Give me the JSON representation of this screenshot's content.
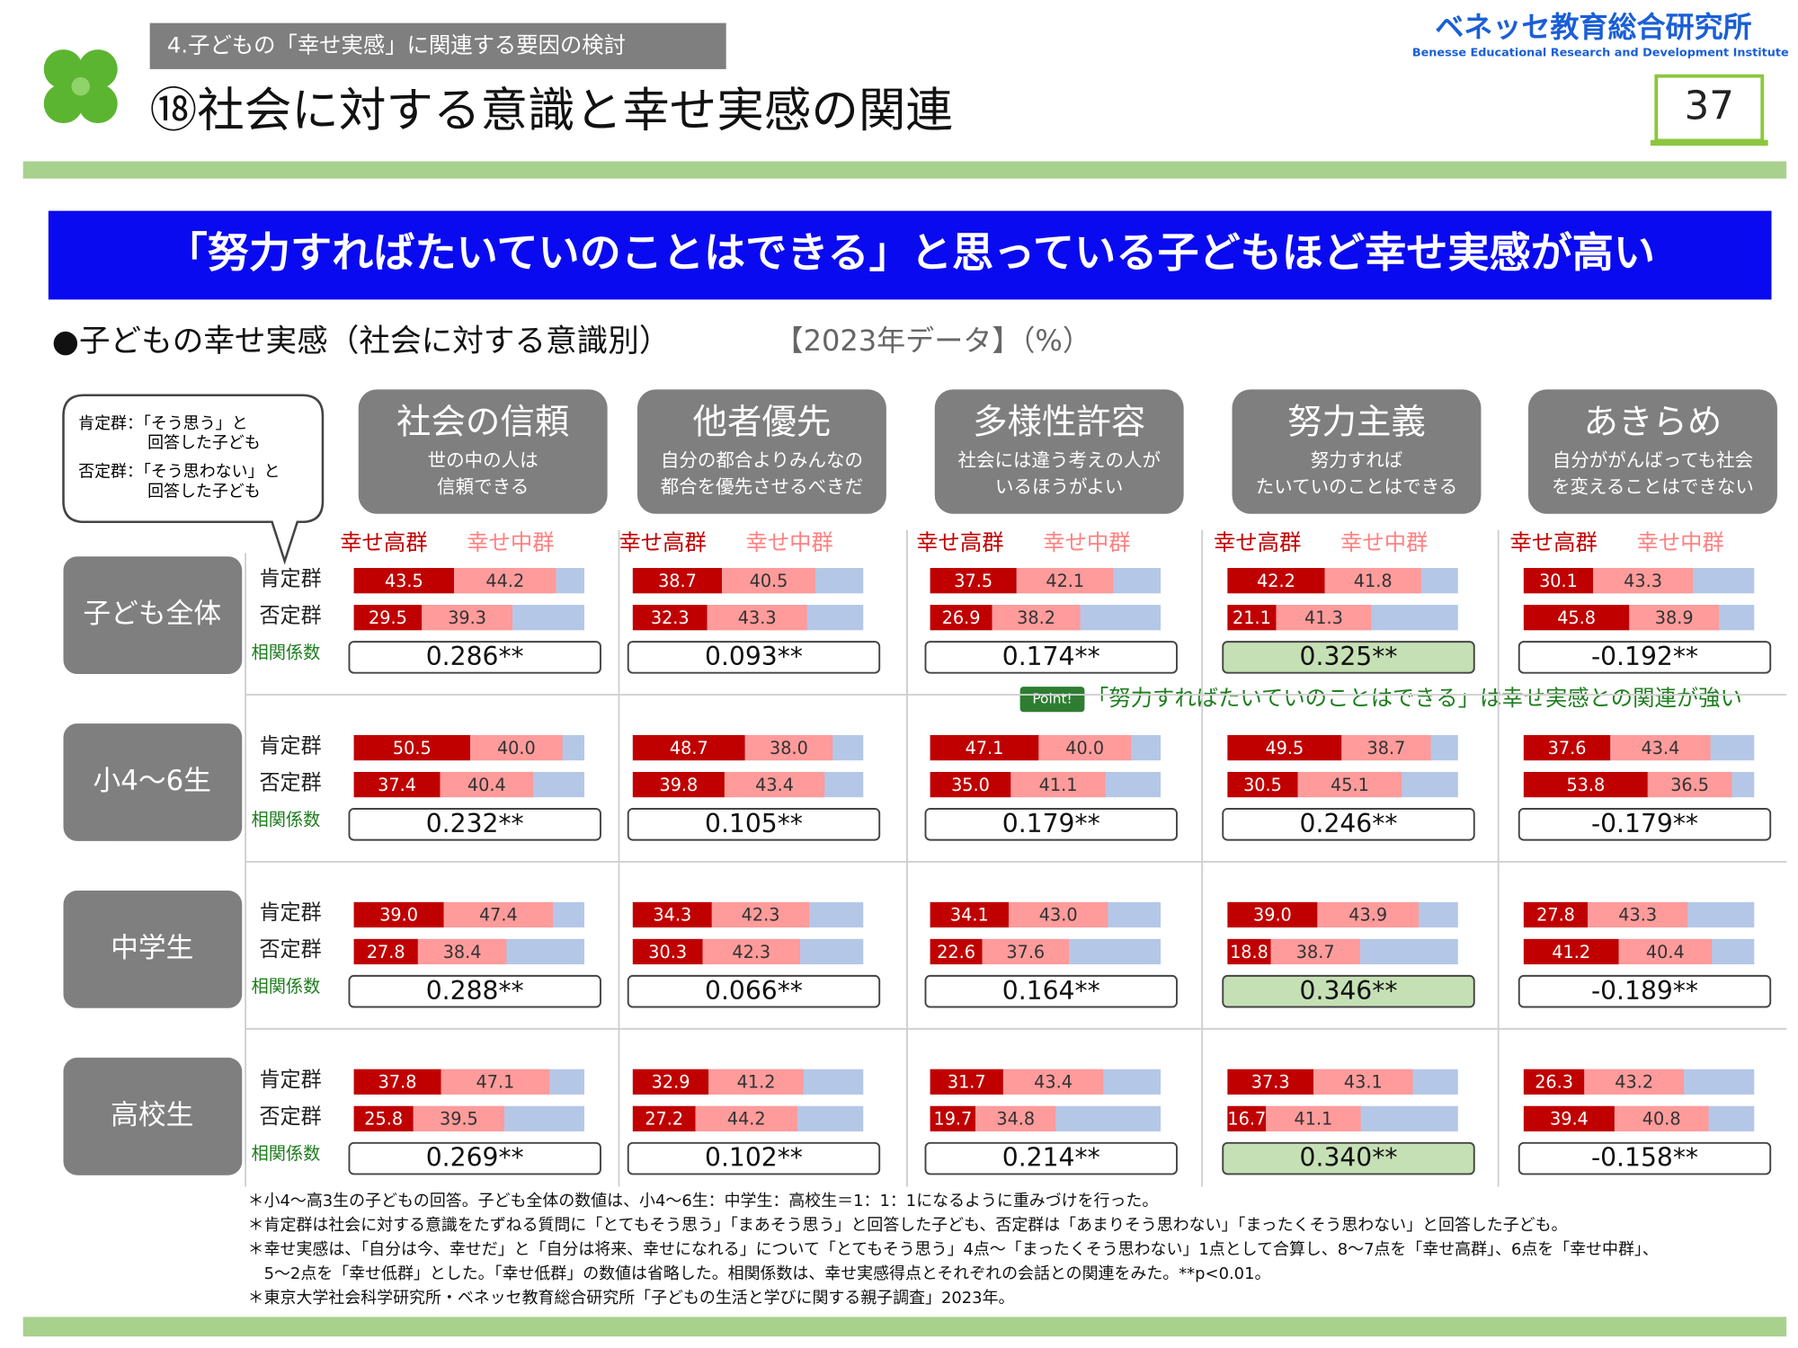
{
  "header": {
    "section": "4.子どもの「幸せ実感」に関連する要因の検討",
    "title": "⑱社会に対する意識と幸せ実感の関連",
    "logo": "ベネッセ教育総合研究所",
    "logo_sub": "Benesse  Educational Research and Development Institute",
    "page": "37"
  },
  "headline": "「努力すればたいていのことはできる」と思っている子どもほど幸せ実感が高い",
  "subtitle": {
    "main": "●子どもの幸せ実感（社会に対する意識別）",
    "year": "【2023年データ】（%）"
  },
  "legend_box": [
    [
      "肯定群：「そう思う」と",
      "回答した子ども"
    ],
    [
      "否定群：「そう思わない」と",
      "回答した子ども"
    ]
  ],
  "series_labels": [
    "幸せ高群",
    "幸せ中群"
  ],
  "row_labels": [
    "肯定群",
    "否定群",
    "相関係数"
  ],
  "columns": [
    {
      "name": "社会の信頼",
      "desc": [
        "世の中の人は",
        "信頼できる"
      ]
    },
    {
      "name": "他者優先",
      "desc": [
        "自分の都合よりみんなの",
        "都合を優先させるべきだ"
      ]
    },
    {
      "name": "多様性許容",
      "desc": [
        "社会には違う考えの人が",
        "いるほうがよい"
      ]
    },
    {
      "name": "努力主義",
      "desc": [
        "努力すれば",
        "たいていのことはできる"
      ]
    },
    {
      "name": "あきらめ",
      "desc": [
        "自分ががんばっても社会",
        "を変えることはできない"
      ]
    }
  ],
  "groups": [
    {
      "name": "子ども全体",
      "panels": [
        {
          "pos": {
            "values": [
              43.5,
              44.2
            ],
            "value_labels": [
              "43.5",
              "44.2"
            ]
          },
          "neg": {
            "values": [
              29.5,
              39.3
            ],
            "value_labels": [
              "29.5",
              "39.3"
            ]
          },
          "corr": "0.286**",
          "highlight": false
        },
        {
          "pos": {
            "values": [
              38.7,
              40.5
            ],
            "value_labels": [
              "38.7",
              "40.5"
            ]
          },
          "neg": {
            "values": [
              32.3,
              43.3
            ],
            "value_labels": [
              "32.3",
              "43.3"
            ]
          },
          "corr": "0.093**",
          "highlight": false
        },
        {
          "pos": {
            "values": [
              37.5,
              42.1
            ],
            "value_labels": [
              "37.5",
              "42.1"
            ]
          },
          "neg": {
            "values": [
              26.9,
              38.2
            ],
            "value_labels": [
              "26.9",
              "38.2"
            ]
          },
          "corr": "0.174**",
          "highlight": false
        },
        {
          "pos": {
            "values": [
              42.2,
              41.8
            ],
            "value_labels": [
              "42.2",
              "41.8"
            ]
          },
          "neg": {
            "values": [
              21.1,
              41.3
            ],
            "value_labels": [
              "21.1",
              "41.3"
            ]
          },
          "corr": "0.325**",
          "highlight": true
        },
        {
          "pos": {
            "values": [
              30.1,
              43.3
            ],
            "value_labels": [
              "30.1",
              "43.3"
            ]
          },
          "neg": {
            "values": [
              45.8,
              38.9
            ],
            "value_labels": [
              "45.8",
              "38.9"
            ]
          },
          "corr": "-0.192**",
          "highlight": false
        }
      ]
    },
    {
      "name": "小4～6生",
      "panels": [
        {
          "pos": {
            "values": [
              50.5,
              40.0
            ],
            "value_labels": [
              "50.5",
              "40.0"
            ]
          },
          "neg": {
            "values": [
              37.4,
              40.4
            ],
            "value_labels": [
              "37.4",
              "40.4"
            ]
          },
          "corr": "0.232**",
          "highlight": false
        },
        {
          "pos": {
            "values": [
              48.7,
              38.0
            ],
            "value_labels": [
              "48.7",
              "38.0"
            ]
          },
          "neg": {
            "values": [
              39.8,
              43.4
            ],
            "value_labels": [
              "39.8",
              "43.4"
            ]
          },
          "corr": "0.105**",
          "highlight": false
        },
        {
          "pos": {
            "values": [
              47.1,
              40.0
            ],
            "value_labels": [
              "47.1",
              "40.0"
            ]
          },
          "neg": {
            "values": [
              35.0,
              41.1
            ],
            "value_labels": [
              "35.0",
              "41.1"
            ]
          },
          "corr": "0.179**",
          "highlight": false
        },
        {
          "pos": {
            "values": [
              49.5,
              38.7
            ],
            "value_labels": [
              "49.5",
              "38.7"
            ]
          },
          "neg": {
            "values": [
              30.5,
              45.1
            ],
            "value_labels": [
              "30.5",
              "45.1"
            ]
          },
          "corr": "0.246**",
          "highlight": false
        },
        {
          "pos": {
            "values": [
              37.6,
              43.4
            ],
            "value_labels": [
              "37.6",
              "43.4"
            ]
          },
          "neg": {
            "values": [
              53.8,
              36.5
            ],
            "value_labels": [
              "53.8",
              "36.5"
            ]
          },
          "corr": "-0.179**",
          "highlight": false
        }
      ]
    },
    {
      "name": "中学生",
      "panels": [
        {
          "pos": {
            "values": [
              39.0,
              47.4
            ],
            "value_labels": [
              "39.0",
              "47.4"
            ]
          },
          "neg": {
            "values": [
              27.8,
              38.4
            ],
            "value_labels": [
              "27.8",
              "38.4"
            ]
          },
          "corr": "0.288**",
          "highlight": false
        },
        {
          "pos": {
            "values": [
              34.3,
              42.3
            ],
            "value_labels": [
              "34.3",
              "42.3"
            ]
          },
          "neg": {
            "values": [
              30.3,
              42.3
            ],
            "value_labels": [
              "30.3",
              "42.3"
            ]
          },
          "corr": "0.066**",
          "highlight": false
        },
        {
          "pos": {
            "values": [
              34.1,
              43.0
            ],
            "value_labels": [
              "34.1",
              "43.0"
            ]
          },
          "neg": {
            "values": [
              22.6,
              37.6
            ],
            "value_labels": [
              "22.6",
              "37.6"
            ]
          },
          "corr": "0.164**",
          "highlight": false
        },
        {
          "pos": {
            "values": [
              39.0,
              43.9
            ],
            "value_labels": [
              "39.0",
              "43.9"
            ]
          },
          "neg": {
            "values": [
              18.8,
              38.7
            ],
            "value_labels": [
              "18.8",
              "38.7"
            ]
          },
          "corr": "0.346**",
          "highlight": true
        },
        {
          "pos": {
            "values": [
              27.8,
              43.3
            ],
            "value_labels": [
              "27.8",
              "43.3"
            ]
          },
          "neg": {
            "values": [
              41.2,
              40.4
            ],
            "value_labels": [
              "41.2",
              "40.4"
            ]
          },
          "corr": "-0.189**",
          "highlight": false
        }
      ]
    },
    {
      "name": "高校生",
      "panels": [
        {
          "pos": {
            "values": [
              37.8,
              47.1
            ],
            "value_labels": [
              "37.8",
              "47.1"
            ]
          },
          "neg": {
            "values": [
              25.8,
              39.5
            ],
            "value_labels": [
              "25.8",
              "39.5"
            ]
          },
          "corr": "0.269**",
          "highlight": false
        },
        {
          "pos": {
            "values": [
              32.9,
              41.2
            ],
            "value_labels": [
              "32.9",
              "41.2"
            ]
          },
          "neg": {
            "values": [
              27.2,
              44.2
            ],
            "value_labels": [
              "27.2",
              "44.2"
            ]
          },
          "corr": "0.102**",
          "highlight": false
        },
        {
          "pos": {
            "values": [
              31.7,
              43.4
            ],
            "value_labels": [
              "31.7",
              "43.4"
            ]
          },
          "neg": {
            "values": [
              19.7,
              34.8
            ],
            "value_labels": [
              "19.7",
              "34.8"
            ]
          },
          "corr": "0.214**",
          "highlight": false
        },
        {
          "pos": {
            "values": [
              37.3,
              43.1
            ],
            "value_labels": [
              "37.3",
              "43.1"
            ]
          },
          "neg": {
            "values": [
              16.7,
              41.1
            ],
            "value_labels": [
              "16.7",
              "41.1"
            ]
          },
          "corr": "0.340**",
          "highlight": true
        },
        {
          "pos": {
            "values": [
              26.3,
              43.2
            ],
            "value_labels": [
              "26.3",
              "43.2"
            ]
          },
          "neg": {
            "values": [
              39.4,
              40.8
            ],
            "value_labels": [
              "39.4",
              "40.8"
            ]
          },
          "corr": "-0.158**",
          "highlight": false
        }
      ]
    }
  ],
  "point": {
    "badge": "Point!",
    "text": "「努力すればたいていのことはできる」は幸せ実感との関連が強い"
  },
  "notes": [
    "＊小4～高3生の子どもの回答。子ども全体の数値は、小4～6生：中学生：高校生＝1：1：1になるように重みづけを行った。",
    "＊肯定群は社会に対する意識をたずねる質問に「とてもそう思う」「まあそう思う」と回答した子ども、否定群は「あまりそう思わない」「まったくそう思わない」と回答した子ども。",
    "＊幸せ実感は、「自分は今、幸せだ」と「自分は将来、幸せになれる」について「とてもそう思う」4点～「まったくそう思わない」1点として合算し、8～7点を「幸せ高群」、6点を「幸せ中群」、",
    "　5～2点を「幸せ低群」とした。「幸せ低群」の数値は省略した。相関係数は、幸せ実感得点とそれぞれの会話との関連をみた。**p<0.01。",
    "＊東京大学社会科学研究所・ベネッセ教育総合研究所「子どもの生活と学びに関する親子調査」2023年。"
  ]
}
